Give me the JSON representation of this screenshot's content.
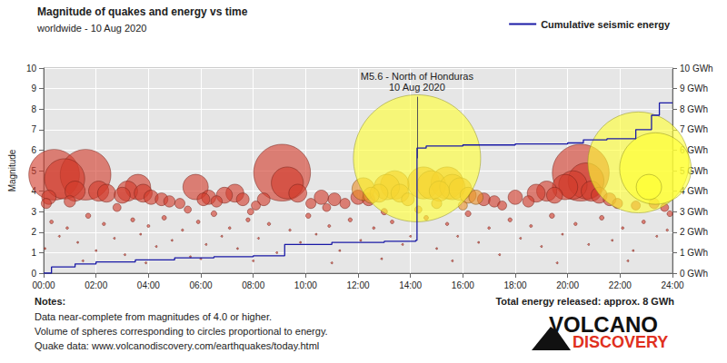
{
  "chart_data": {
    "type": "scatter",
    "title": "Magnitude of quakes and energy vs time",
    "subtitle": "worldwide - 10 Aug 2020",
    "y_label": "Magnitude",
    "xlim": [
      0,
      24
    ],
    "xticks": [
      {
        "value": 0,
        "label": "00:00"
      },
      {
        "value": 2,
        "label": "02:00"
      },
      {
        "value": 4,
        "label": "04:00"
      },
      {
        "value": 6,
        "label": "06:00"
      },
      {
        "value": 8,
        "label": "08:00"
      },
      {
        "value": 10,
        "label": "10:00"
      },
      {
        "value": 12,
        "label": "12:00"
      },
      {
        "value": 14,
        "label": "14:00"
      },
      {
        "value": 16,
        "label": "16:00"
      },
      {
        "value": 18,
        "label": "18:00"
      },
      {
        "value": 20,
        "label": "20:00"
      },
      {
        "value": 22,
        "label": "22:00"
      },
      {
        "value": 24,
        "label": "24:00"
      }
    ],
    "ylim": [
      0,
      10
    ],
    "yticks": [
      0,
      1,
      2,
      3,
      4,
      5,
      6,
      7,
      8,
      9,
      10
    ],
    "y2lim": [
      0,
      10
    ],
    "y2ticks": [
      {
        "value": 0,
        "label": "0 GWh"
      },
      {
        "value": 1,
        "label": "1 GWh"
      },
      {
        "value": 2,
        "label": "2 GWh"
      },
      {
        "value": 3,
        "label": "3 GWh"
      },
      {
        "value": 4,
        "label": "4 GWh"
      },
      {
        "value": 5,
        "label": "5 GWh"
      },
      {
        "value": 6,
        "label": "6 GWh"
      },
      {
        "value": 7,
        "label": "7 GWh"
      },
      {
        "value": 8,
        "label": "8 GWh"
      },
      {
        "value": 9,
        "label": "9 GWh"
      },
      {
        "value": 10,
        "label": "10 GWh"
      }
    ],
    "grid": true,
    "legend": "upper right",
    "annotation": {
      "text": "M5.6 - North of Honduras",
      "date": "10 Aug 2020",
      "x": 14.25,
      "y": 5.6
    },
    "notes": {
      "title": "Notes:",
      "lines": [
        "Data near-complete from magnitudes of 4.0 or higher.",
        "Volume of spheres corresponding to circles proportional to energy.",
        "Quake data: www.volcanodiscovery.com/earthquakes/today.html"
      ]
    },
    "total_energy": "Total energy released: approx. 8 GWh",
    "logo": [
      "VOLCANO",
      "DISCOVERY"
    ],
    "series": [
      {
        "type": "scatter",
        "marker": "circle",
        "color": "#d23c2c",
        "values": [
          [
            0.4,
            4.8
          ],
          [
            0.8,
            4.6
          ],
          [
            1.6,
            4.8
          ],
          [
            1.2,
            4.0
          ],
          [
            2.1,
            4.0
          ],
          [
            2.4,
            3.9
          ],
          [
            3.0,
            3.8
          ],
          [
            3.2,
            4.0
          ],
          [
            3.6,
            4.2
          ],
          [
            3.8,
            3.9
          ],
          [
            4.1,
            3.7
          ],
          [
            4.5,
            3.6
          ],
          [
            4.8,
            3.5
          ],
          [
            5.2,
            3.4
          ],
          [
            5.8,
            4.2
          ],
          [
            6.1,
            3.6
          ],
          [
            6.3,
            3.7
          ],
          [
            6.6,
            3.5
          ],
          [
            6.9,
            3.8
          ],
          [
            7.3,
            3.9
          ],
          [
            7.6,
            3.6
          ],
          [
            8.1,
            3.3
          ],
          [
            8.4,
            3.6
          ],
          [
            9.1,
            4.9
          ],
          [
            9.3,
            4.4
          ],
          [
            9.7,
            3.9
          ],
          [
            10.2,
            3.4
          ],
          [
            10.6,
            3.7
          ],
          [
            11.1,
            3.6
          ],
          [
            11.5,
            3.4
          ],
          [
            12.0,
            3.7
          ],
          [
            12.4,
            3.6
          ],
          [
            16.8,
            3.6
          ],
          [
            17.2,
            3.5
          ],
          [
            17.5,
            3.3
          ],
          [
            18.0,
            3.7
          ],
          [
            18.5,
            3.5
          ],
          [
            18.8,
            3.9
          ],
          [
            19.2,
            4.0
          ],
          [
            19.5,
            3.8
          ],
          [
            19.9,
            4.2
          ],
          [
            20.2,
            4.3
          ],
          [
            20.5,
            4.9
          ],
          [
            20.7,
            4.5
          ],
          [
            20.9,
            4.0
          ],
          [
            21.2,
            3.8
          ],
          [
            21.6,
            3.6
          ],
          [
            21.9,
            3.4
          ],
          [
            22.6,
            3.3
          ],
          [
            23.3,
            3.4
          ],
          [
            23.7,
            3.2
          ],
          [
            0.1,
            3.4
          ],
          [
            0.2,
            3.7
          ],
          [
            1.0,
            3.5
          ],
          [
            2.8,
            3.2
          ],
          [
            5.5,
            3.1
          ],
          [
            7.9,
            3.0
          ],
          [
            10.8,
            3.2
          ],
          [
            13.0,
            3.0
          ],
          [
            23.9,
            2.9
          ],
          [
            0.3,
            2.5
          ],
          [
            0.6,
            1.8
          ],
          [
            0.9,
            2.2
          ],
          [
            1.3,
            1.5
          ],
          [
            1.7,
            2.8
          ],
          [
            2.0,
            1.1
          ],
          [
            2.3,
            2.4
          ],
          [
            2.7,
            1.7
          ],
          [
            3.1,
            0.9
          ],
          [
            3.4,
            2.6
          ],
          [
            3.7,
            1.9
          ],
          [
            4.0,
            2.3
          ],
          [
            4.3,
            1.3
          ],
          [
            4.6,
            2.7
          ],
          [
            4.9,
            1.6
          ],
          [
            5.3,
            2.1
          ],
          [
            5.6,
            0.8
          ],
          [
            5.9,
            2.5
          ],
          [
            6.2,
            1.4
          ],
          [
            6.5,
            2.9
          ],
          [
            6.8,
            1.8
          ],
          [
            7.1,
            2.2
          ],
          [
            7.4,
            1.2
          ],
          [
            7.8,
            2.6
          ],
          [
            8.2,
            1.7
          ],
          [
            8.6,
            2.4
          ],
          [
            8.9,
            1.0
          ],
          [
            9.4,
            2.1
          ],
          [
            9.8,
            1.5
          ],
          [
            10.1,
            2.8
          ],
          [
            10.4,
            1.9
          ],
          [
            10.9,
            2.3
          ],
          [
            11.3,
            1.1
          ],
          [
            11.7,
            2.6
          ],
          [
            12.1,
            1.6
          ],
          [
            12.6,
            2.2
          ],
          [
            12.9,
            0.7
          ],
          [
            13.3,
            2.5
          ],
          [
            13.7,
            1.4
          ],
          [
            14.0,
            1.8
          ],
          [
            14.6,
            2.7
          ],
          [
            15.0,
            1.2
          ],
          [
            15.4,
            2.4
          ],
          [
            15.8,
            1.8
          ],
          [
            16.2,
            2.9
          ],
          [
            16.6,
            1.5
          ],
          [
            17.0,
            2.2
          ],
          [
            17.4,
            0.9
          ],
          [
            17.8,
            2.6
          ],
          [
            18.2,
            1.7
          ],
          [
            18.6,
            2.3
          ],
          [
            19.0,
            1.3
          ],
          [
            19.4,
            2.8
          ],
          [
            19.8,
            1.9
          ],
          [
            20.3,
            2.4
          ],
          [
            20.8,
            1.4
          ],
          [
            21.3,
            2.7
          ],
          [
            21.7,
            1.6
          ],
          [
            22.1,
            2.2
          ],
          [
            22.5,
            1.1
          ],
          [
            22.9,
            2.5
          ],
          [
            23.4,
            1.8
          ],
          [
            23.8,
            2.1
          ],
          [
            0.05,
            1.2
          ],
          [
            1.5,
            0.6
          ],
          [
            3.9,
            0.5
          ],
          [
            6.0,
            0.7
          ],
          [
            8.0,
            0.6
          ],
          [
            11.0,
            0.5
          ],
          [
            15.6,
            0.6
          ],
          [
            19.6,
            0.5
          ],
          [
            22.3,
            0.6
          ]
        ]
      },
      {
        "type": "scatter",
        "marker": "circle",
        "color": "#e8902a",
        "values": [
          [
            12.2,
            4.1
          ],
          [
            12.5,
            3.8
          ],
          [
            12.8,
            3.9
          ],
          [
            13.1,
            4.2
          ],
          [
            13.4,
            4.3
          ],
          [
            13.6,
            3.9
          ],
          [
            13.9,
            3.6
          ],
          [
            14.5,
            4.4
          ],
          [
            14.8,
            4.3
          ],
          [
            15.1,
            4.0
          ],
          [
            15.4,
            4.4
          ],
          [
            15.6,
            4.2
          ],
          [
            15.9,
            4.1
          ],
          [
            16.2,
            3.8
          ],
          [
            16.5,
            3.7
          ],
          [
            15.0,
            3.4
          ],
          [
            14.3,
            3.1
          ],
          [
            16.0,
            3.3
          ]
        ]
      },
      {
        "type": "scatter",
        "marker": "circle",
        "color": "#ffff33",
        "values": [
          [
            14.25,
            5.6
          ],
          [
            22.7,
            5.4
          ],
          [
            23.35,
            5.1
          ],
          [
            23.1,
            4.2
          ]
        ]
      },
      {
        "type": "line",
        "axis": "y2",
        "name": "Cumulative seismic energy",
        "color": "#1a1aa6",
        "marker": "none",
        "line_style": "solid",
        "values": [
          [
            0,
            0
          ],
          [
            0.3,
            0.3
          ],
          [
            1.2,
            0.45
          ],
          [
            2.0,
            0.55
          ],
          [
            3.5,
            0.65
          ],
          [
            5.0,
            0.75
          ],
          [
            6.5,
            0.8
          ],
          [
            8.0,
            0.85
          ],
          [
            9.2,
            1.4
          ],
          [
            11.0,
            1.5
          ],
          [
            13.0,
            1.55
          ],
          [
            14.2,
            1.6
          ],
          [
            14.25,
            6.1
          ],
          [
            14.6,
            6.2
          ],
          [
            16.0,
            6.25
          ],
          [
            18.0,
            6.3
          ],
          [
            20.0,
            6.35
          ],
          [
            20.6,
            6.5
          ],
          [
            21.5,
            6.55
          ],
          [
            22.6,
            7.0
          ],
          [
            23.2,
            7.7
          ],
          [
            23.5,
            8.3
          ],
          [
            24,
            8.3
          ]
        ]
      }
    ]
  }
}
